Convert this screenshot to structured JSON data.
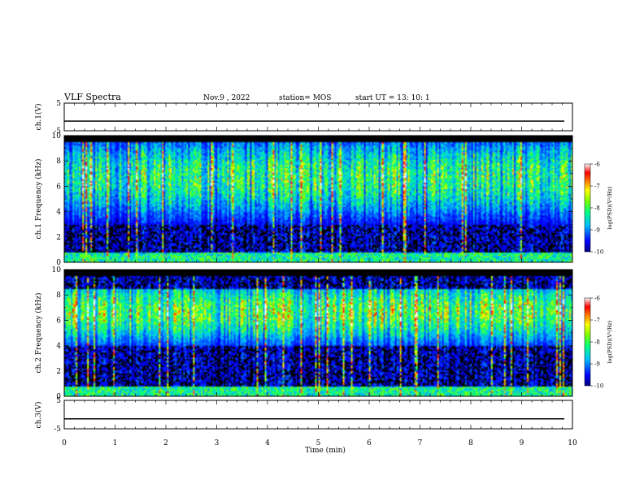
{
  "header": {
    "title": "VLF Spectra",
    "date": "Nov.9 , 2022",
    "station": "station= MOS",
    "start_ut": "start UT = 13: 10: 1"
  },
  "chart_data": [
    {
      "type": "line",
      "panel": "ch1-waveform",
      "ylabel": "ch.1(V)",
      "ylim": [
        -5,
        5
      ],
      "ytick_labels": [
        "5",
        "-5"
      ],
      "x": [
        0,
        10
      ],
      "series": [
        {
          "values": [
            -1.5,
            -1.5
          ]
        }
      ]
    },
    {
      "type": "heatmap",
      "panel": "ch1-spectrogram",
      "ylabel": "ch.1 Frequency (kHz)",
      "ylim": [
        0,
        10
      ],
      "ytick_labels": [
        "0",
        "2",
        "4",
        "6",
        "8",
        "10"
      ],
      "xlim": [
        0,
        10
      ],
      "emission_band_khz": [
        3,
        9.5
      ],
      "colorbar": {
        "label": "log(PSD)(V²/Hz)",
        "ticks": [
          "-6",
          "-7",
          "-8",
          "-9",
          "-10"
        ],
        "range": [
          -10,
          -6
        ]
      }
    },
    {
      "type": "heatmap",
      "panel": "ch2-spectrogram",
      "ylabel": "ch.2 Frequency (kHz)",
      "ylim": [
        0,
        10
      ],
      "ytick_labels": [
        "0",
        "2",
        "4",
        "6",
        "8",
        "10"
      ],
      "xlim": [
        0,
        10
      ],
      "emission_band_khz": [
        4,
        8.5
      ],
      "colorbar": {
        "label": "log(PSD)(V²/Hz)",
        "ticks": [
          "-6",
          "-7",
          "-8",
          "-9",
          "-10"
        ],
        "range": [
          -10,
          -6
        ]
      }
    },
    {
      "type": "line",
      "panel": "ch3-waveform",
      "ylabel": "ch.3(V)",
      "ylim": [
        -5,
        5
      ],
      "ytick_labels": [
        "5",
        "-5"
      ],
      "x": [
        0,
        10
      ],
      "series": [
        {
          "values": [
            -1.5,
            -1.5
          ]
        }
      ]
    }
  ],
  "x_axis": {
    "label": "Time (min)",
    "ticks": [
      "0",
      "1",
      "2",
      "3",
      "4",
      "5",
      "6",
      "7",
      "8",
      "9",
      "10"
    ]
  },
  "colors": {
    "colormap": [
      "#00007f",
      "#0000ff",
      "#00bfff",
      "#00ff80",
      "#80ff00",
      "#ffff00",
      "#ff8000",
      "#ff0000",
      "#ffffff"
    ],
    "background": "#000000"
  }
}
